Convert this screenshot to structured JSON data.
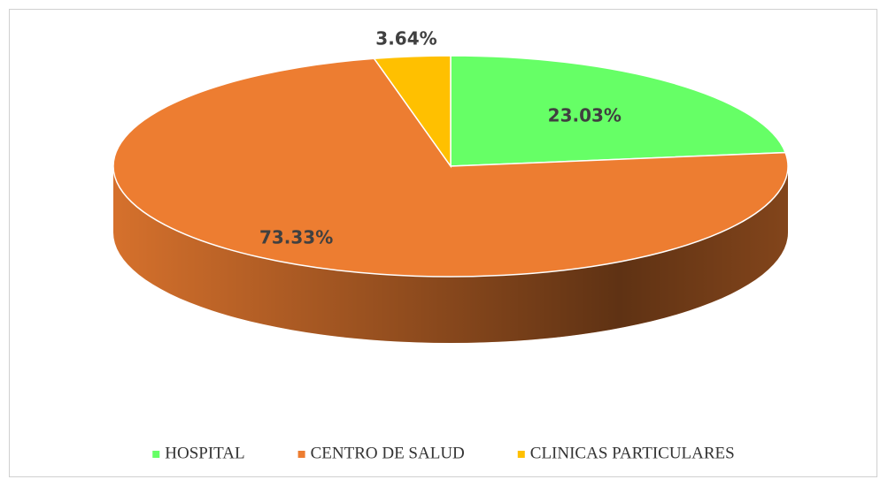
{
  "chart_data": {
    "type": "pie3d",
    "categories": [
      "HOSPITAL",
      "CENTRO DE SALUD",
      "CLINICAS PARTICULARES"
    ],
    "values": [
      23.03,
      73.33,
      3.64
    ],
    "value_labels": [
      "23.03%",
      "73.33%",
      "3.64%"
    ],
    "colors": [
      "#66ff66",
      "#ed7d31",
      "#ffc000"
    ],
    "legend": "bottom"
  }
}
